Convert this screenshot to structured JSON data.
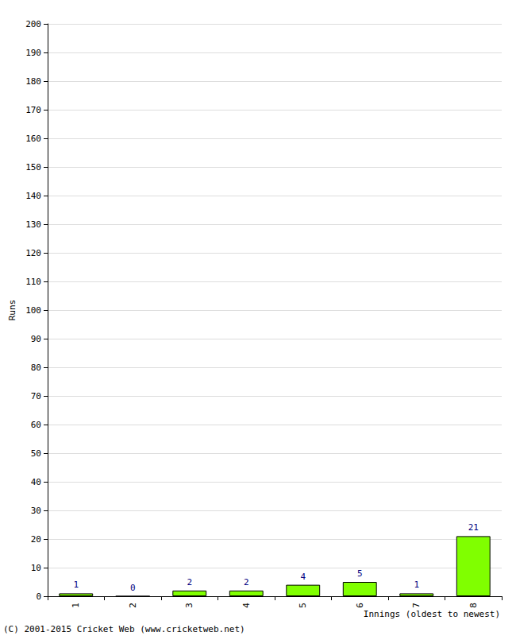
{
  "chart_data": {
    "type": "bar",
    "categories": [
      "1",
      "2",
      "3",
      "4",
      "5",
      "6",
      "7",
      "8"
    ],
    "values": [
      1,
      0,
      2,
      2,
      4,
      5,
      1,
      21
    ],
    "color": "#80ff00",
    "x_label": "Innings (oldest to newest)",
    "y_label": "Runs",
    "ylim": [
      0,
      200
    ],
    "yticks": [
      0,
      10,
      20,
      30,
      40,
      50,
      60,
      70,
      80,
      90,
      100,
      110,
      120,
      130,
      140,
      150,
      160,
      170,
      180,
      190,
      200
    ],
    "grid": true,
    "data_labels": true,
    "annotations": [
      "(C) 2001-2015 Cricket Web (www.cricketweb.net)"
    ]
  }
}
